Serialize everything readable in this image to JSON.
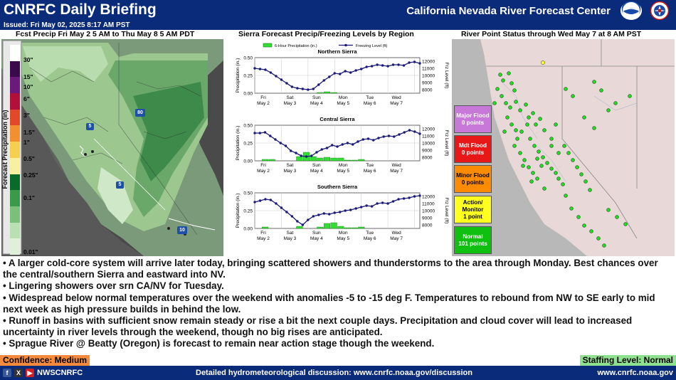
{
  "header": {
    "title": "CNRFC Daily Briefing",
    "center_name": "California Nevada River Forecast Center",
    "issued": "Issued: Fri May 02, 2025 8:17 AM PST"
  },
  "panels": {
    "precip_title": "Fcst Precip Fri May 2 5 AM to Thu May 8 5 AM PDT",
    "sierra_title": "Sierra Forecast Precip/Freezing Levels by Region",
    "river_title": "River Point Status through Wed May 7 at 8 AM PST"
  },
  "precip_legend": {
    "axis_label": "Forecast Precipitation (in)",
    "labels": [
      "30\"",
      "15\"",
      "10\"",
      "6\"",
      "3\"",
      "1.5\"",
      "1\"",
      "0.5\"",
      "0.25\"",
      "0.1\"",
      "0.01\""
    ],
    "colors": [
      "#ffffff",
      "#3a0a4a",
      "#6a1a7a",
      "#b0103a",
      "#e04a2a",
      "#f09030",
      "#f5d050",
      "#f7f0a0",
      "#0a6a2a",
      "#3a9a4a",
      "#7ac07a",
      "#b8e0b0",
      "#e0f0d8"
    ],
    "shields": [
      "80",
      "5",
      "5",
      "10"
    ]
  },
  "sierra": {
    "legend_precip": "6-Hour Precipitation (in.)",
    "legend_freezing": "Freezing Level (ft)",
    "y_label_left": "Precipitation (in.)",
    "y_label_right": "Frz Level (ft)",
    "days": [
      {
        "day": "Fri",
        "date": "May 2"
      },
      {
        "day": "Sat",
        "date": "May 3"
      },
      {
        "day": "Sun",
        "date": "May 4"
      },
      {
        "day": "Mon",
        "date": "May 5"
      },
      {
        "day": "Tue",
        "date": "May 6"
      },
      {
        "day": "Wed",
        "date": "May 7"
      }
    ],
    "left_ticks": [
      "0.50",
      "0.25",
      "0.00"
    ],
    "right_ticks": [
      "12000",
      "11000",
      "10000",
      "9000",
      "8000"
    ],
    "right_ticks_central": [
      "12000",
      "11000",
      "10000",
      "9000",
      "8000"
    ]
  },
  "chart_data": [
    {
      "type": "line",
      "title": "Northern Sierra",
      "xlabel": "",
      "ylabel": "Precipitation (in.)",
      "ylim": [
        0,
        0.5
      ],
      "y2lim": [
        7500,
        12500
      ],
      "series": [
        {
          "name": "6-Hour Precipitation (in.)",
          "type": "bar",
          "values": [
            0,
            0,
            0,
            0,
            0,
            0,
            0,
            0,
            0,
            0.01,
            0.02,
            0.01,
            0,
            0,
            0,
            0,
            0,
            0,
            0,
            0,
            0,
            0,
            0,
            0
          ]
        },
        {
          "name": "Freezing Level (ft)",
          "type": "line",
          "values": [
            11000,
            10900,
            10800,
            10400,
            9900,
            9400,
            8900,
            8400,
            8200,
            8100,
            8000,
            8100,
            8700,
            9300,
            9800,
            10300,
            10200,
            10600,
            10400,
            10700,
            10900,
            11200,
            11300,
            11500,
            11400,
            11300,
            11500,
            11500,
            11400,
            11800,
            11900,
            11700
          ]
        }
      ]
    },
    {
      "type": "line",
      "title": "Central Sierra",
      "xlabel": "",
      "ylabel": "Precipitation (in.)",
      "ylim": [
        0,
        0.5
      ],
      "y2lim": [
        7500,
        12500
      ],
      "series": [
        {
          "name": "6-Hour Precipitation (in.)",
          "type": "bar",
          "values": [
            0,
            0.02,
            0.02,
            0,
            0,
            0,
            0.06,
            0.12,
            0.06,
            0.04,
            0.05,
            0.04,
            0.04,
            0.01,
            0.01,
            0.02,
            0,
            0,
            0,
            0,
            0,
            0,
            0,
            0
          ]
        },
        {
          "name": "Freezing Level (ft)",
          "type": "line",
          "values": [
            11400,
            11400,
            11500,
            11000,
            10500,
            10000,
            9600,
            8900,
            8600,
            8200,
            8100,
            8200,
            8700,
            9100,
            9300,
            9700,
            9500,
            9800,
            10000,
            9800,
            10200,
            10500,
            10600,
            10400,
            10700,
            10900,
            11000,
            10900,
            11200,
            11500,
            11800,
            11600,
            11300
          ]
        }
      ]
    },
    {
      "type": "line",
      "title": "Southern Sierra",
      "xlabel": "",
      "ylabel": "Precipitation (in.)",
      "ylim": [
        0,
        0.5
      ],
      "y2lim": [
        7500,
        12500
      ],
      "series": [
        {
          "name": "6-Hour Precipitation (in.)",
          "type": "bar",
          "values": [
            0,
            0.02,
            0,
            0,
            0,
            0,
            0.03,
            0,
            0,
            0.02,
            0.07,
            0.08,
            0.03,
            0.01,
            0.01,
            0.02,
            0,
            0,
            0,
            0,
            0,
            0,
            0,
            0
          ]
        },
        {
          "name": "Freezing Level (ft)",
          "type": "line",
          "values": [
            11200,
            11400,
            11600,
            11500,
            11000,
            10400,
            9800,
            9200,
            8500,
            8000,
            8700,
            9200,
            9400,
            9600,
            9500,
            9700,
            9800,
            10000,
            10100,
            10300,
            10500,
            10700,
            10600,
            11000,
            11100,
            11000,
            11300,
            11600,
            11700,
            11800,
            12000,
            12100
          ]
        }
      ]
    }
  ],
  "river_status": [
    {
      "label": "Major Flood",
      "count": "0 points",
      "color": "#c878d8",
      "text_color": "#ffffff"
    },
    {
      "label": "Mdt Flood",
      "count": "0 points",
      "color": "#e81818",
      "text_color": "#ffffff"
    },
    {
      "label": "Minor Flood",
      "count": "0 points",
      "color": "#ff8c00",
      "text_color": "#000000"
    },
    {
      "label": "Action/ Monitor",
      "count": "1 point",
      "color": "#ffff20",
      "text_color": "#000000"
    },
    {
      "label": "Normal",
      "count": "101 points",
      "color": "#10c010",
      "text_color": "#ffffff"
    }
  ],
  "bullets": [
    "• A larger cold-core system will arrive later today, bringing scattered showers and thunderstorms to the area through Monday. Best chances over the central/southern Sierra and eastward into NV.",
    "• Lingering showers over srn CA/NV for Tuesday.",
    "• Widespread below normal temperatures over the weekend with anomalies -5 to -15 deg F. Temperatures to rebound from NW to SE early to mid next week as high pressure builds in behind the low.",
    "• Runoff in basins with sufficient snow remain steady or rise a bit the next couple days. Precipitation and cloud cover will lead to increased uncertainty in river levels through the weekend, though no big rises are anticipated.",
    "• Sprague River @ Beatty (Oregon) is forecast to remain near action stage though the weekend."
  ],
  "confidence": "Confidence: Medium",
  "staffing": "Staffing Level: Normal",
  "footer": {
    "social_handle": "NWSCNRFC",
    "discussion": "Detailed hydrometeorological discussion: www.cnrfc.noaa.gov/discussion",
    "website": "www.cnrfc.noaa.gov"
  }
}
